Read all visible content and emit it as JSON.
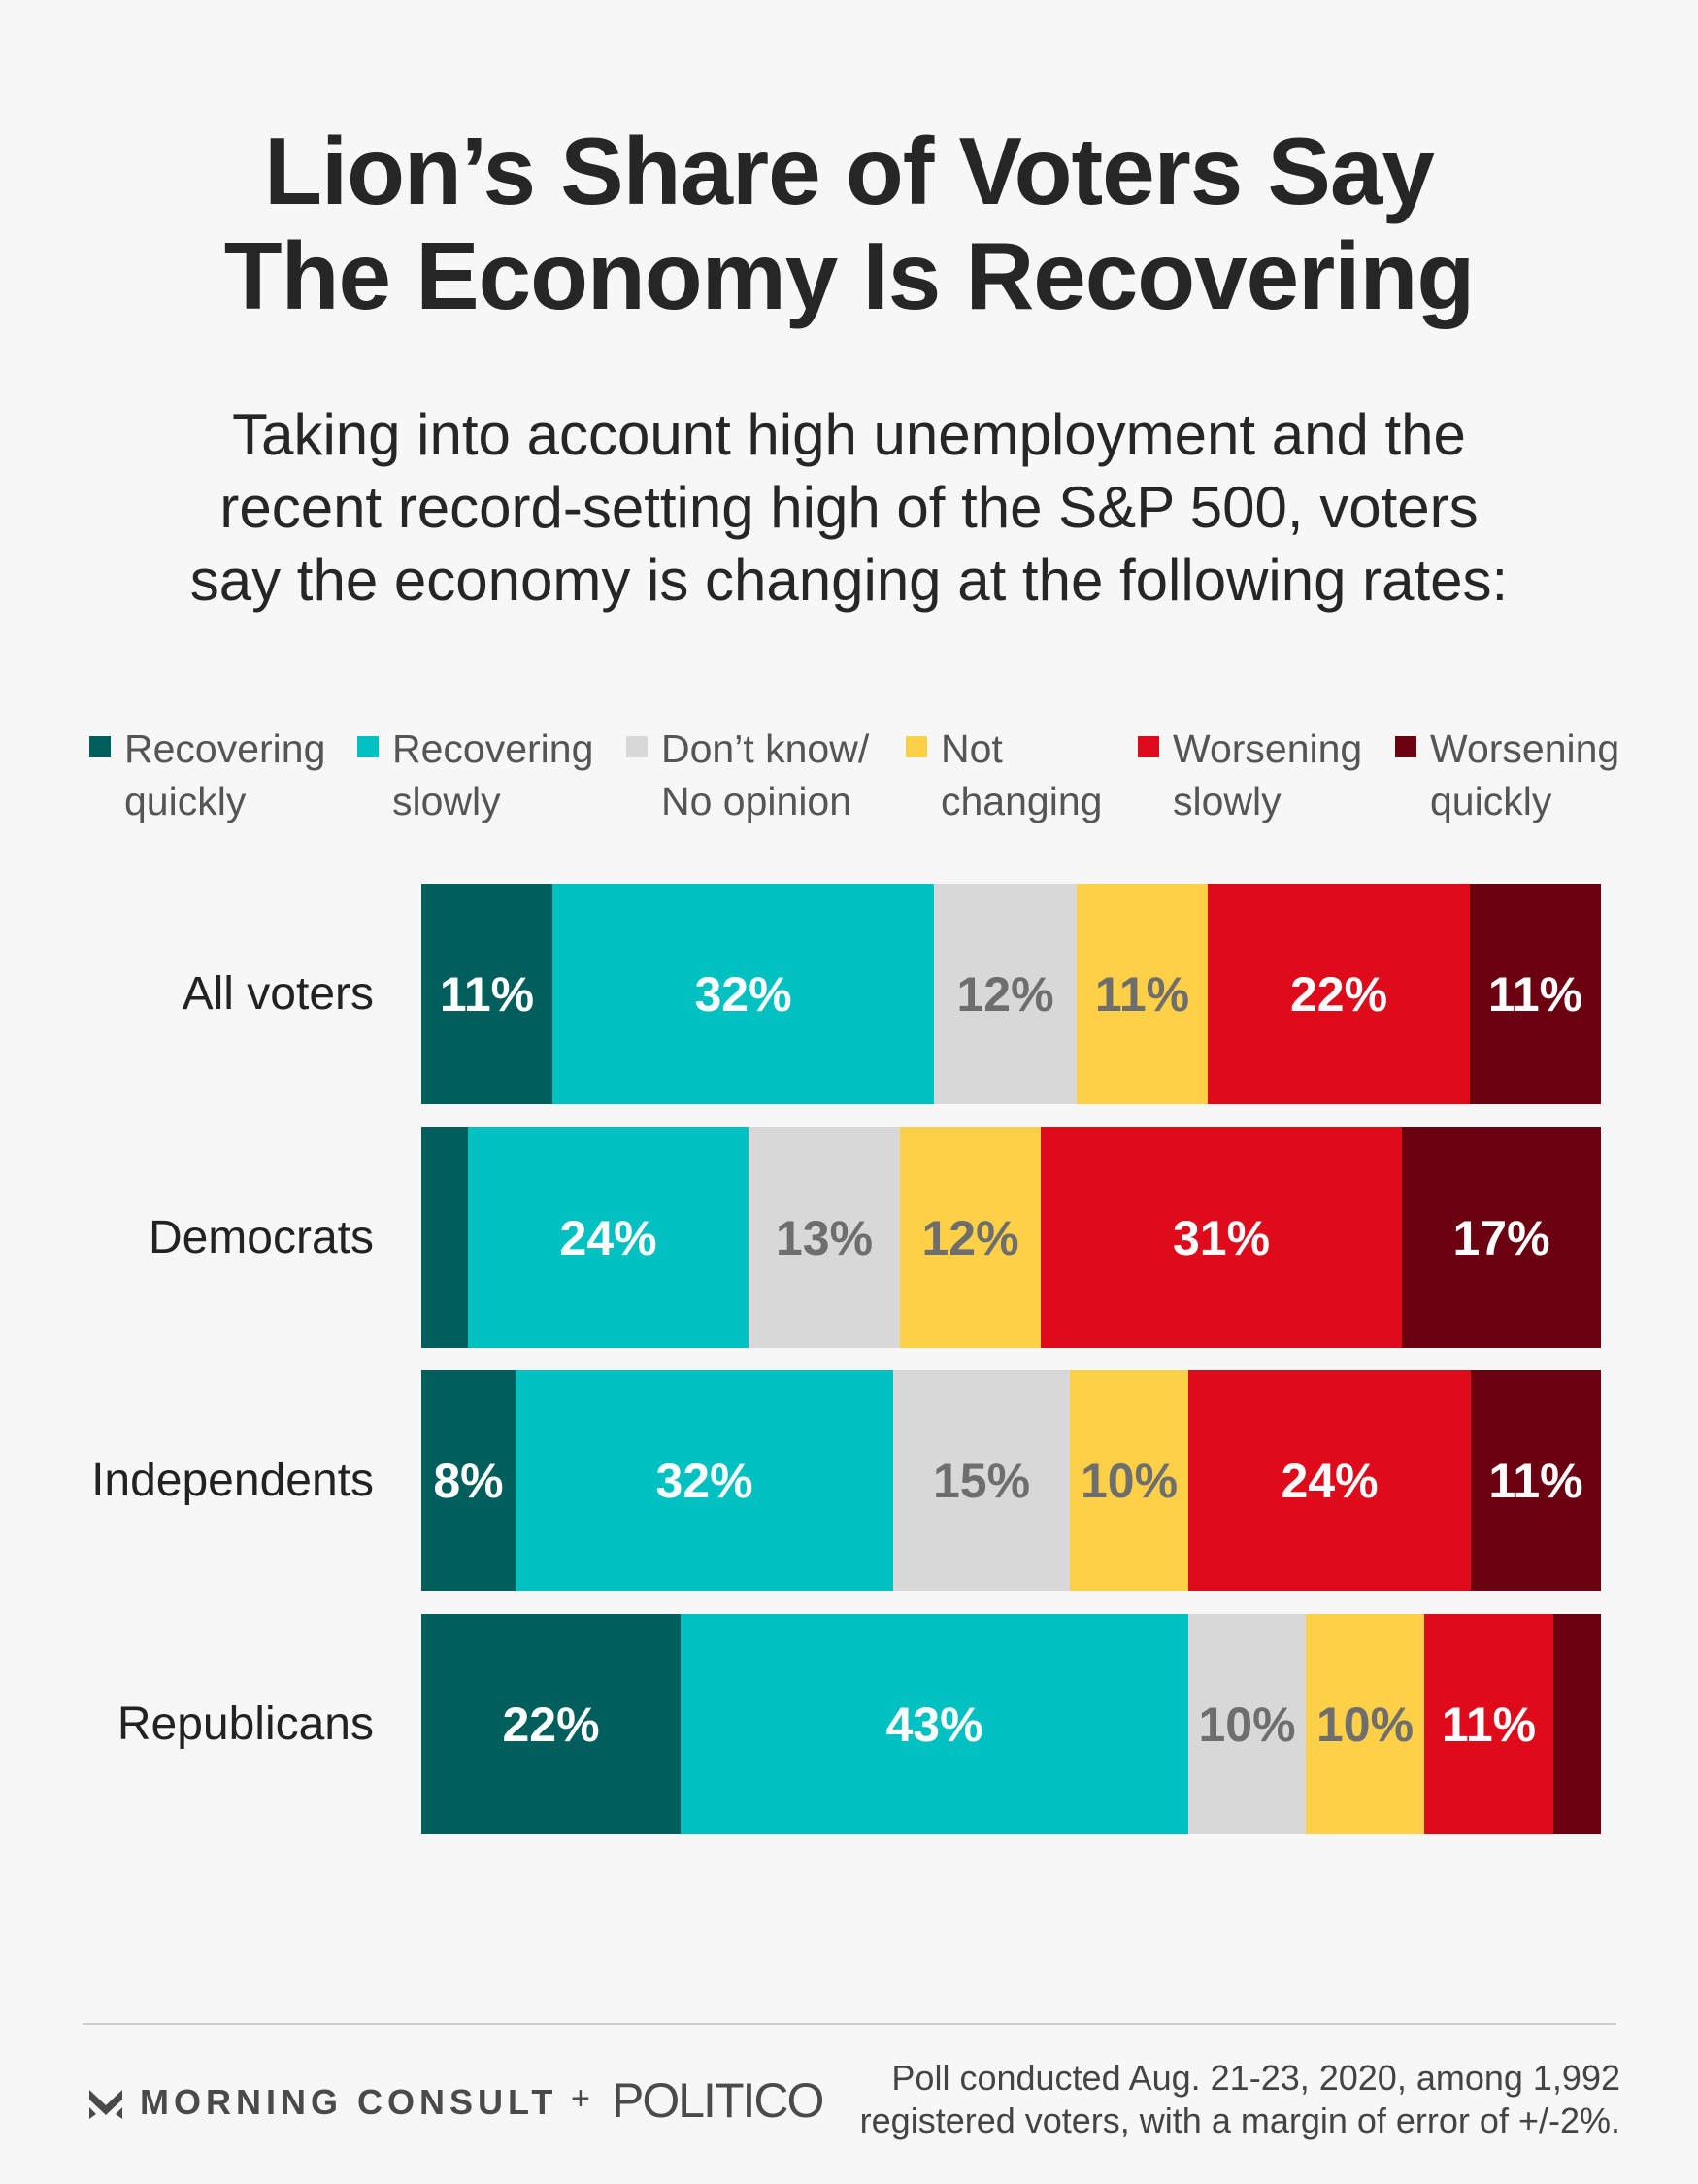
{
  "title_lines": [
    "Lion’s Share of Voters Say",
    "The Economy Is Recovering"
  ],
  "subtitle_lines": [
    "Taking into account high unemployment and the",
    "recent record-setting high of the S&P 500, voters",
    "say the economy is changing at the following rates:"
  ],
  "legend": [
    {
      "lines": [
        "Recovering",
        "quickly"
      ],
      "color": "#005e5c"
    },
    {
      "lines": [
        "Recovering",
        "slowly"
      ],
      "color": "#00c1c1"
    },
    {
      "lines": [
        "Don’t know/",
        "No opinion"
      ],
      "color": "#d8d8d8"
    },
    {
      "lines": [
        "Not",
        "changing"
      ],
      "color": "#fdd047"
    },
    {
      "lines": [
        "Worsening",
        "slowly"
      ],
      "color": "#df0b1b"
    },
    {
      "lines": [
        "Worsening",
        "quickly"
      ],
      "color": "#6b0010"
    }
  ],
  "chart_data": {
    "type": "bar",
    "orientation": "horizontal",
    "stacked": true,
    "title": "Lion’s Share of Voters Say The Economy Is Recovering",
    "categories": [
      "All voters",
      "Democrats",
      "Independents",
      "Republicans"
    ],
    "series": [
      {
        "name": "Recovering quickly",
        "color": "#005e5c",
        "values": [
          11,
          4,
          8,
          22
        ],
        "labels": [
          "11%",
          "",
          "8%",
          "22%"
        ],
        "label_color": "#ffffff"
      },
      {
        "name": "Recovering slowly",
        "color": "#00c1c1",
        "values": [
          32,
          24,
          32,
          43
        ],
        "labels": [
          "32%",
          "24%",
          "32%",
          "43%"
        ],
        "label_color": "#ffffff"
      },
      {
        "name": "Don’t know/ No opinion",
        "color": "#d8d8d8",
        "values": [
          12,
          13,
          15,
          10
        ],
        "labels": [
          "12%",
          "13%",
          "15%",
          "10%"
        ],
        "label_color": "#6e6e6e"
      },
      {
        "name": "Not changing",
        "color": "#fdd047",
        "values": [
          11,
          12,
          10,
          10
        ],
        "labels": [
          "11%",
          "12%",
          "10%",
          "10%"
        ],
        "label_color": "#6e6e6e"
      },
      {
        "name": "Worsening slowly",
        "color": "#df0b1b",
        "values": [
          22,
          31,
          24,
          11
        ],
        "labels": [
          "22%",
          "31%",
          "24%",
          "11%"
        ],
        "label_color": "#ffffff"
      },
      {
        "name": "Worsening quickly",
        "color": "#6b0010",
        "values": [
          11,
          17,
          11,
          4
        ],
        "labels": [
          "11%",
          "17%",
          "11%",
          ""
        ],
        "label_color": "#ffffff"
      }
    ],
    "legend_position": "top",
    "grid": false
  },
  "footer": {
    "logo_mc": "MORNING CONSULT",
    "logo_plus": "+",
    "logo_politico": "POLITICO",
    "note_lines": [
      "Poll conducted Aug. 21-23, 2020, among 1,992",
      "registered voters, with a margin of error of +/-2%."
    ]
  }
}
